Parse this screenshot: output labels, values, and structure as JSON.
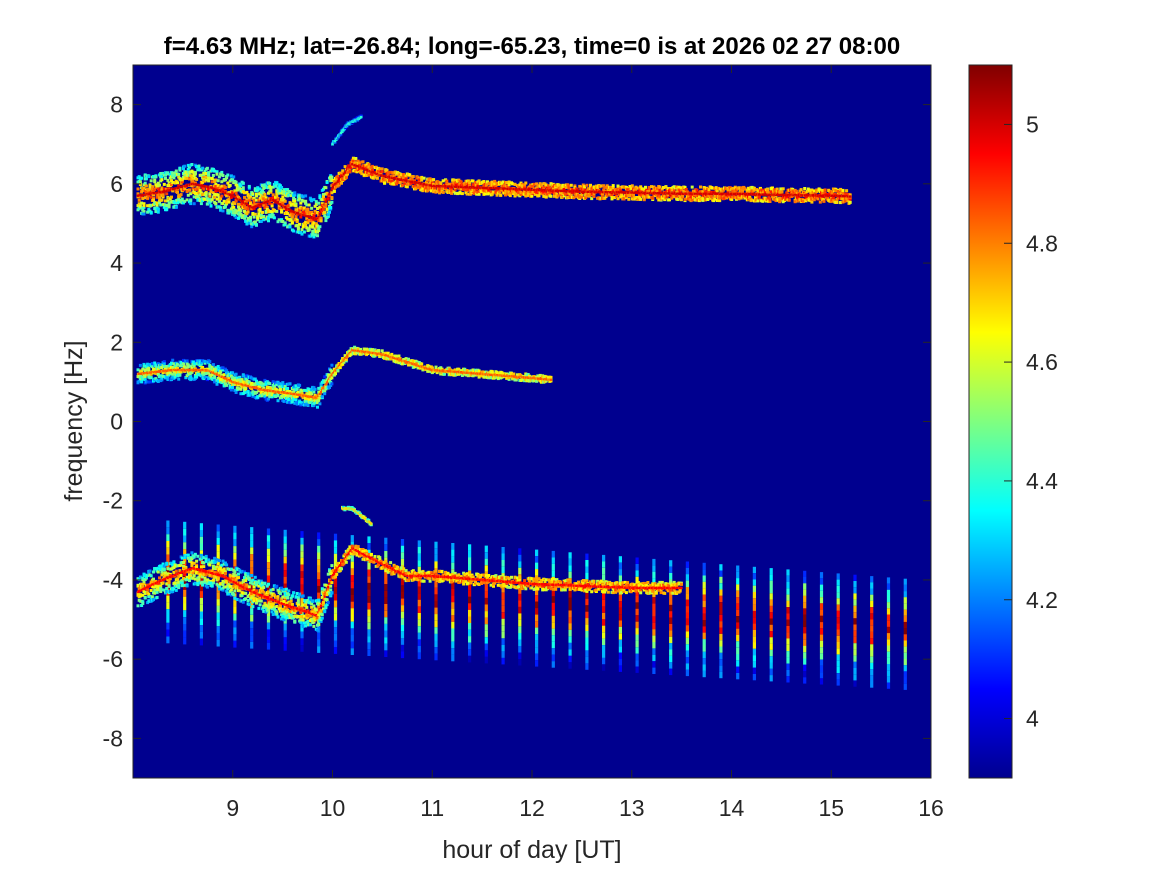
{
  "chart_data": {
    "type": "heatmap",
    "title": "f=4.63 MHz;  lat=-26.84; long=-65.23, time=0 is at 2026 02 27 08:00",
    "xlabel": "hour of day [UT]",
    "ylabel": "frequency [Hz]",
    "xlim": [
      8.0,
      16.0
    ],
    "ylim": [
      -9,
      9
    ],
    "x_ticks": [
      9,
      10,
      11,
      12,
      13,
      14,
      15,
      16
    ],
    "x_tick_labels": [
      "9",
      "10",
      "11",
      "12",
      "13",
      "14",
      "15",
      "16"
    ],
    "y_ticks": [
      -8,
      -6,
      -4,
      -2,
      0,
      2,
      4,
      6,
      8
    ],
    "y_tick_labels": [
      "-8",
      "-6",
      "-4",
      "-2",
      "0",
      "2",
      "4",
      "6",
      "8"
    ],
    "colorbar": {
      "colormap": "jet",
      "clim": [
        3.9,
        5.1
      ],
      "ticks": [
        4,
        4.2,
        4.4,
        4.6,
        4.8,
        5
      ],
      "tick_labels": [
        "4",
        "4.2",
        "4.4",
        "4.6",
        "4.8",
        "5"
      ]
    },
    "background_value": 3.9,
    "traces": [
      {
        "points": [
          [
            8.05,
            5.7
          ],
          [
            8.3,
            5.8
          ],
          [
            8.6,
            6.0
          ],
          [
            8.8,
            5.9
          ],
          [
            9.0,
            5.7
          ],
          [
            9.2,
            5.4
          ],
          [
            9.4,
            5.6
          ],
          [
            9.6,
            5.3
          ],
          [
            9.85,
            5.1
          ],
          [
            10.0,
            5.9
          ],
          [
            10.2,
            6.5
          ],
          [
            10.5,
            6.2
          ],
          [
            11.0,
            5.95
          ],
          [
            11.5,
            5.9
          ],
          [
            12.0,
            5.85
          ],
          [
            12.5,
            5.8
          ],
          [
            13.0,
            5.78
          ],
          [
            13.5,
            5.75
          ],
          [
            14.0,
            5.75
          ],
          [
            14.5,
            5.72
          ],
          [
            15.0,
            5.7
          ],
          [
            15.2,
            5.68
          ]
        ],
        "value": 4.9,
        "spread": 0.5
      },
      {
        "points": [
          [
            8.05,
            1.2
          ],
          [
            8.4,
            1.3
          ],
          [
            8.75,
            1.3
          ],
          [
            9.0,
            1.0
          ],
          [
            9.3,
            0.8
          ],
          [
            9.6,
            0.7
          ],
          [
            9.85,
            0.6
          ],
          [
            10.0,
            1.2
          ],
          [
            10.2,
            1.8
          ],
          [
            10.5,
            1.7
          ],
          [
            11.0,
            1.3
          ],
          [
            11.5,
            1.2
          ],
          [
            12.0,
            1.1
          ],
          [
            12.2,
            1.05
          ]
        ],
        "value": 4.75,
        "spread": 0.25
      },
      {
        "points": [
          [
            8.05,
            -4.3
          ],
          [
            8.3,
            -4.0
          ],
          [
            8.6,
            -3.7
          ],
          [
            8.9,
            -3.9
          ],
          [
            9.2,
            -4.3
          ],
          [
            9.5,
            -4.6
          ],
          [
            9.85,
            -4.9
          ],
          [
            10.0,
            -3.9
          ],
          [
            10.2,
            -3.2
          ],
          [
            10.5,
            -3.6
          ],
          [
            10.75,
            -3.9
          ],
          [
            11.0,
            -3.9
          ],
          [
            11.5,
            -4.0
          ],
          [
            12.0,
            -4.1
          ],
          [
            12.5,
            -4.15
          ],
          [
            13.0,
            -4.2
          ],
          [
            13.5,
            -4.2
          ]
        ],
        "value": 4.85,
        "spread": 0.4
      },
      {
        "points": [
          [
            10.1,
            -2.2
          ],
          [
            10.2,
            -2.2
          ],
          [
            10.4,
            -2.6
          ]
        ],
        "value": 4.6,
        "spread": 0.1
      },
      {
        "points": [
          [
            10.0,
            7.0
          ],
          [
            10.15,
            7.5
          ],
          [
            10.3,
            7.7
          ]
        ],
        "value": 4.3,
        "spread": 0.1
      }
    ],
    "stripe_series": {
      "x_start": 8.35,
      "x_end": 15.9,
      "spacing": 0.168,
      "y_top_early": -2.5,
      "y_top_late": -4.0,
      "y_bottom_early": -5.6,
      "y_bottom_late": -6.8,
      "peak_value": 5.0
    }
  }
}
